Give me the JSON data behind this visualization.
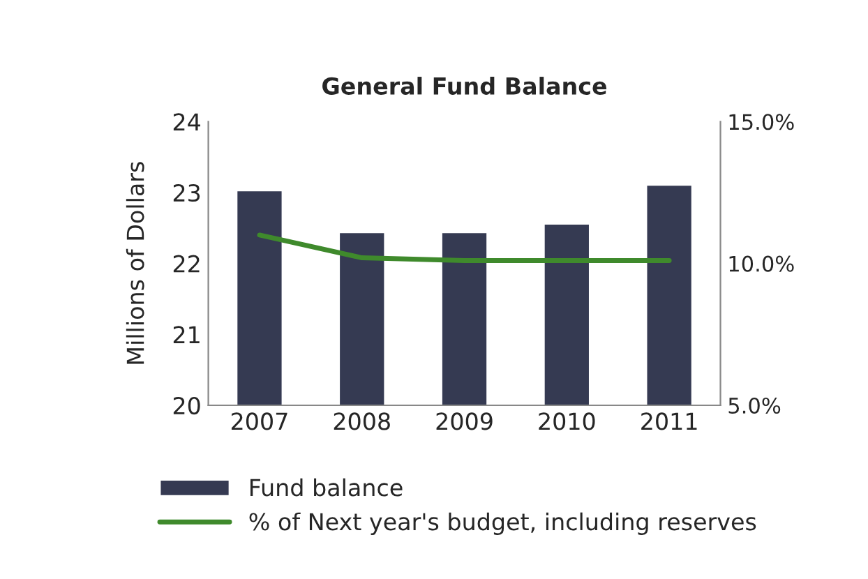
{
  "chart_data": {
    "type": "bar",
    "title": "General Fund Balance",
    "ylabel": "Millions of Dollars",
    "categories": [
      "2007",
      "2008",
      "2009",
      "2010",
      "2011"
    ],
    "series": [
      {
        "name": "Fund balance",
        "color": "#353a52",
        "values": [
          23.03,
          22.44,
          22.44,
          22.56,
          23.11
        ]
      },
      {
        "name": "% of Next year's budget, including reserves",
        "type": "line",
        "axis": "y2",
        "color": "#3f8a2c",
        "values": [
          11.0,
          10.2,
          10.1,
          10.1,
          10.1
        ]
      }
    ],
    "ylim": [
      20,
      24
    ],
    "yticks": [
      20,
      21,
      22,
      23,
      24
    ],
    "y2lim": [
      5,
      15
    ],
    "y2ticks": [
      {
        "value": 5,
        "label": "5.0%"
      },
      {
        "value": 10,
        "label": "10.0%"
      },
      {
        "value": 15,
        "label": "15.0%"
      }
    ],
    "grid": false,
    "legend": "bottom",
    "marker": "none"
  }
}
